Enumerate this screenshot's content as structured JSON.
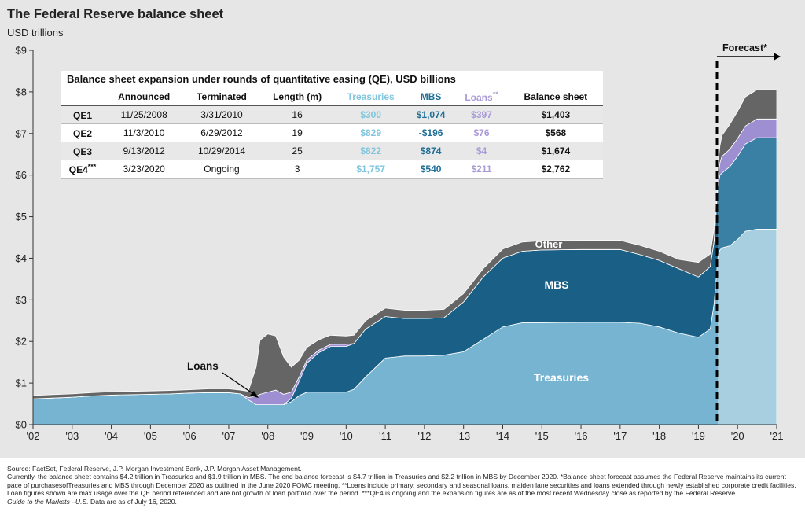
{
  "header": {
    "title": "The Federal Reserve balance sheet",
    "subtitle": "USD trillions"
  },
  "forecast_label": "Forecast*",
  "area_labels": {
    "other": "Other",
    "mbs": "MBS",
    "treasuries": "Treasuries",
    "loans": "Loans"
  },
  "colors": {
    "treasuries": "#77b4d1",
    "treasuries_forecast": "#a7cfe0",
    "mbs": "#195f86",
    "mbs_forecast": "#3a7fa4",
    "loans": "#9d8fd1",
    "other": "#656565",
    "background": "#e6e6e6"
  },
  "chart_data": {
    "type": "area",
    "stacked": true,
    "title": "The Federal Reserve balance sheet",
    "ylabel": "USD trillions",
    "ylim": [
      0,
      9
    ],
    "xlim": [
      2002,
      2021
    ],
    "xticks": [
      "'02",
      "'03",
      "'04",
      "'05",
      "'06",
      "'07",
      "'08",
      "'09",
      "'10",
      "'11",
      "'12",
      "'13",
      "'14",
      "'15",
      "'16",
      "'17",
      "'18",
      "'19",
      "'20",
      "'21"
    ],
    "yticks": [
      "$0",
      "$1",
      "$2",
      "$3",
      "$4",
      "$5",
      "$6",
      "$7",
      "$8",
      "$9"
    ],
    "forecast_start": 2019.5,
    "x": [
      2002.0,
      2002.5,
      2003.0,
      2003.5,
      2004.0,
      2004.5,
      2005.0,
      2005.5,
      2006.0,
      2006.5,
      2007.0,
      2007.3,
      2007.5,
      2007.7,
      2007.8,
      2008.0,
      2008.2,
      2008.4,
      2008.6,
      2008.8,
      2009.0,
      2009.3,
      2009.6,
      2010.0,
      2010.2,
      2010.5,
      2011.0,
      2011.5,
      2012.0,
      2012.5,
      2013.0,
      2013.5,
      2014.0,
      2014.5,
      2015.0,
      2016.0,
      2017.0,
      2017.5,
      2018.0,
      2018.5,
      2019.0,
      2019.3,
      2019.4,
      2019.5,
      2019.55,
      2019.6,
      2019.8,
      2020.0,
      2020.2,
      2020.5,
      2021.0
    ],
    "series": [
      {
        "name": "Treasuries",
        "values": [
          0.62,
          0.64,
          0.66,
          0.69,
          0.71,
          0.72,
          0.73,
          0.74,
          0.76,
          0.77,
          0.77,
          0.74,
          0.6,
          0.48,
          0.48,
          0.48,
          0.48,
          0.48,
          0.55,
          0.7,
          0.78,
          0.78,
          0.78,
          0.78,
          0.85,
          1.15,
          1.6,
          1.65,
          1.65,
          1.67,
          1.75,
          2.05,
          2.35,
          2.45,
          2.45,
          2.46,
          2.46,
          2.44,
          2.35,
          2.2,
          2.1,
          2.3,
          2.9,
          4.05,
          4.2,
          4.25,
          4.3,
          4.45,
          4.65,
          4.7,
          4.7
        ]
      },
      {
        "name": "MBS",
        "values": [
          0,
          0,
          0,
          0,
          0,
          0,
          0,
          0,
          0,
          0,
          0,
          0,
          0,
          0,
          0,
          0,
          0,
          0,
          0.08,
          0.35,
          0.7,
          0.95,
          1.1,
          1.1,
          1.1,
          1.15,
          1.0,
          0.9,
          0.9,
          0.9,
          1.2,
          1.5,
          1.65,
          1.72,
          1.75,
          1.75,
          1.75,
          1.65,
          1.6,
          1.55,
          1.45,
          1.5,
          1.5,
          1.7,
          1.8,
          1.8,
          1.9,
          2.0,
          2.1,
          2.2,
          2.2
        ]
      },
      {
        "name": "Loans",
        "values": [
          0,
          0,
          0,
          0,
          0,
          0,
          0,
          0,
          0,
          0,
          0,
          0,
          0.05,
          0.2,
          0.25,
          0.3,
          0.35,
          0.25,
          0.15,
          0.1,
          0.08,
          0.06,
          0.05,
          0.05,
          0,
          0,
          0,
          0,
          0,
          0,
          0,
          0,
          0,
          0,
          0,
          0,
          0,
          0,
          0,
          0,
          0,
          0,
          0,
          0.2,
          0.3,
          0.4,
          0.42,
          0.43,
          0.43,
          0.45,
          0.45
        ]
      },
      {
        "name": "Other",
        "values": [
          0.08,
          0.08,
          0.08,
          0.08,
          0.08,
          0.08,
          0.08,
          0.08,
          0.08,
          0.09,
          0.09,
          0.09,
          0.15,
          0.7,
          1.3,
          1.4,
          1.3,
          0.9,
          0.6,
          0.4,
          0.3,
          0.25,
          0.22,
          0.2,
          0.2,
          0.2,
          0.2,
          0.2,
          0.2,
          0.2,
          0.2,
          0.2,
          0.22,
          0.22,
          0.22,
          0.22,
          0.22,
          0.22,
          0.22,
          0.22,
          0.35,
          0.3,
          0.3,
          0.3,
          0.4,
          0.5,
          0.6,
          0.65,
          0.7,
          0.7,
          0.7
        ]
      }
    ]
  },
  "qe_table": {
    "caption": "Balance sheet expansion under rounds of quantitative easing (QE), USD billions",
    "columns": [
      "",
      "Announced",
      "Terminated",
      "Length (m)",
      "Treasuries",
      "MBS",
      "Loans",
      "Balance sheet"
    ],
    "loans_marker": "**",
    "rows": [
      {
        "name": "QE1",
        "marker": "",
        "announced": "11/25/2008",
        "terminated": "3/31/2010",
        "length": "16",
        "treasuries": "$300",
        "mbs": "$1,074",
        "loans": "$397",
        "balance": "$1,403"
      },
      {
        "name": "QE2",
        "marker": "",
        "announced": "11/3/2010",
        "terminated": "6/29/2012",
        "length": "19",
        "treasuries": "$829",
        "mbs": "-$196",
        "loans": "$76",
        "balance": "$568"
      },
      {
        "name": "QE3",
        "marker": "",
        "announced": "9/13/2012",
        "terminated": "10/29/2014",
        "length": "25",
        "treasuries": "$822",
        "mbs": "$874",
        "loans": "$4",
        "balance": "$1,674"
      },
      {
        "name": "QE4",
        "marker": "***",
        "announced": "3/23/2020",
        "terminated": "Ongoing",
        "length": "3",
        "treasuries": "$1,757",
        "mbs": "$540",
        "loans": "$211",
        "balance": "$2,762"
      }
    ]
  },
  "footnotes": {
    "source": "Source: FactSet, Federal Reserve, J.P. Morgan Investment Bank, J.P. Morgan Asset Management.",
    "note": "Currently, the balance sheet contains $4.2 trillion in Treasuries and $1.9 trillion in MBS. The end balance forecast is $4.7 trillion in Treasuries and $2.2 trillion in MBS by December 2020. *Balance sheet forecast assumes the Federal Reserve maintains its current pace of purchasesofTreasuries and MBS through December 2020 as outlined in the June 2020 FOMC meeting. **Loans include primary, secondary and seasonal loans, maiden lane securities and loans extended through newly established corporate credit facilities. Loan figures shown are max usage over the QE period referenced and are not growth of loan portfolio over the period. ***QE4 is ongoing and the expansion figures are as of the most recent Wednesday close as reported by the Federal Reserve.",
    "guide_italic": "Guide to the Markets –U.S.",
    "guide_rest": " Data are as of July 16, 2020."
  }
}
